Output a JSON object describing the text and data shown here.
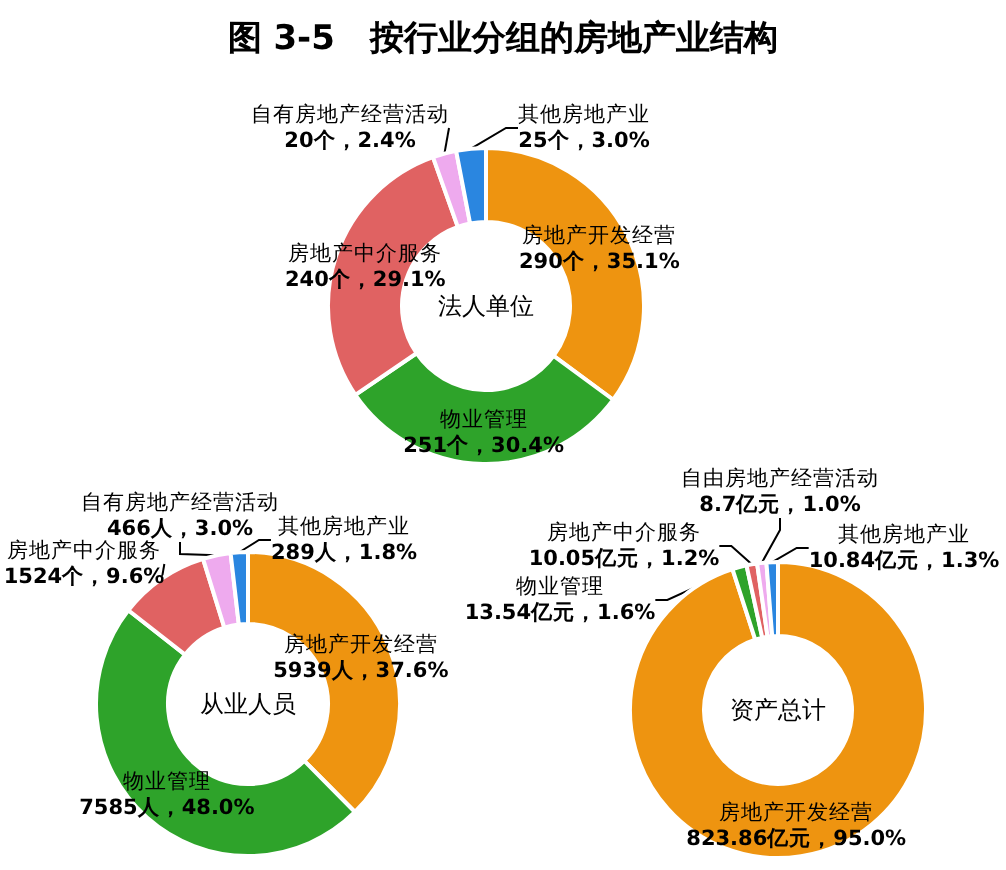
{
  "chart_data": [
    {
      "type": "donut",
      "title": "图 3-5   按行业分组的房地产业结构",
      "annotations": [
        "法人单位"
      ],
      "categories": [
        "房地产开发经营",
        "物业管理",
        "房地产中介服务",
        "自有房地产经营活动",
        "其他房地产业"
      ],
      "values": [
        290,
        251,
        240,
        20,
        25
      ],
      "colors": [
        "#ee9410",
        "#2ea32a",
        "#e06262",
        "#eeaaee",
        "#2a86e0"
      ],
      "value_labels": [
        "290个，35.1%",
        "251个，30.4%",
        "240个，29.1%",
        "20个，2.4%",
        "25个，3.0%"
      ]
    },
    {
      "type": "donut",
      "annotations": [
        "从业人员"
      ],
      "categories": [
        "房地产开发经营",
        "物业管理",
        "房地产中介服务",
        "自有房地产经营活动",
        "其他房地产业"
      ],
      "values": [
        5939,
        7585,
        1524,
        466,
        289
      ],
      "colors": [
        "#ee9410",
        "#2ea32a",
        "#e06262",
        "#eeaaee",
        "#2a86e0"
      ],
      "value_labels": [
        "5939人，37.6%",
        "7585人，48.0%",
        "1524个，9.6%",
        "466人，3.0%",
        "289人，1.8%"
      ]
    },
    {
      "type": "donut",
      "annotations": [
        "资产总计"
      ],
      "categories": [
        "房地产开发经营",
        "物业管理",
        "房地产中介服务",
        "自由房地产经营活动",
        "其他房地产业"
      ],
      "values": [
        823.86,
        13.54,
        10.05,
        8.7,
        10.84
      ],
      "colors": [
        "#ee9410",
        "#2ea32a",
        "#e06262",
        "#eeaaee",
        "#2a86e0"
      ],
      "value_labels": [
        "823.86亿元，95.0%",
        "13.54亿元，1.6%",
        "10.05亿元，1.2%",
        "8.7亿元，1.0%",
        "10.84亿元，1.3%"
      ]
    }
  ]
}
